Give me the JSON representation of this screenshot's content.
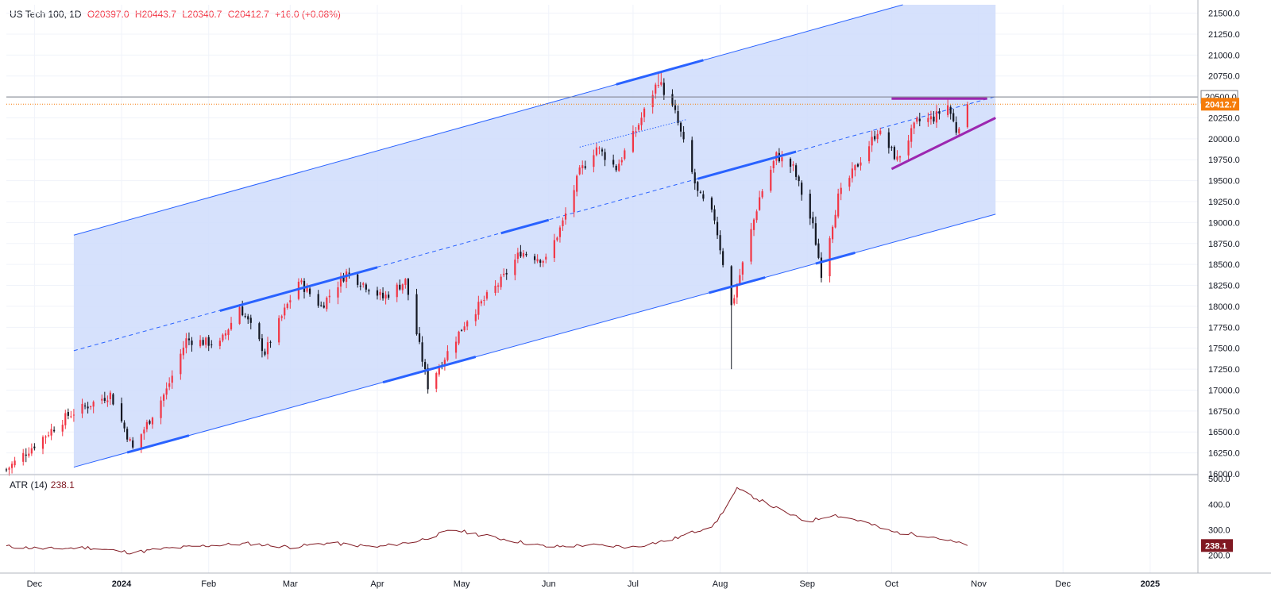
{
  "legend": {
    "symbol": "US Tech 100, 1D",
    "o_label": "O",
    "o": "20397.0",
    "h_label": "H",
    "h": "20443.7",
    "l_label": "L",
    "l": "20340.7",
    "c_label": "C",
    "c": "20412.7",
    "change": "+16.0 (+0.08%)"
  },
  "atr_legend": {
    "name": "ATR (14)",
    "value": "238.1"
  },
  "colors": {
    "up": "#f23645",
    "down": "#131722",
    "channel_fill": "#cfdcfb",
    "channel_line": "#2962ff",
    "touch": "#2962ff",
    "triangle": "#9c27b0",
    "atr_line": "#801922",
    "price_tag": "#f57c0a",
    "atr_tag": "#801922",
    "axis_text": "#131722",
    "grid": "#f0f3fa"
  },
  "chart_data": [
    {
      "type": "candlestick",
      "title": "US Tech 100, 1D",
      "y_ticks": [
        "16000.0",
        "16250.0",
        "16500.0",
        "16750.0",
        "17000.0",
        "17250.0",
        "17500.0",
        "17750.0",
        "18000.0",
        "18250.0",
        "18500.0",
        "18750.0",
        "19000.0",
        "19250.0",
        "19500.0",
        "19750.0",
        "20000.0",
        "20250.0",
        "20500.0",
        "20750.0",
        "21000.0",
        "21250.0",
        "21500.0"
      ],
      "ylim": [
        16000,
        21600
      ],
      "x_ticks": [
        "Dec",
        "2024",
        "Feb",
        "Mar",
        "Apr",
        "May",
        "Jun",
        "Jul",
        "Aug",
        "Sep",
        "Oct",
        "Nov",
        "Dec",
        "2025"
      ],
      "x_tick_dates": [
        "2023-12-01",
        "2024-01-01",
        "2024-02-01",
        "2024-03-01",
        "2024-04-01",
        "2024-05-01",
        "2024-06-01",
        "2024-07-01",
        "2024-08-01",
        "2024-09-01",
        "2024-10-01",
        "2024-11-01",
        "2024-12-01",
        "2025-01-01"
      ],
      "xlim": [
        "2023-11-21",
        "2025-01-18"
      ],
      "last_price": "20412.7",
      "horizontal_level": {
        "value": 20500,
        "label": "20500.0"
      },
      "key_points": [
        {
          "date": "2023-11-21",
          "close": 16050
        },
        {
          "date": "2023-12-13",
          "close": 16700
        },
        {
          "date": "2023-12-28",
          "close": 16950
        },
        {
          "date": "2024-01-05",
          "close": 16300
        },
        {
          "date": "2024-01-17",
          "close": 17000
        },
        {
          "date": "2024-01-24",
          "close": 17600
        },
        {
          "date": "2024-02-05",
          "close": 17550
        },
        {
          "date": "2024-02-12",
          "close": 18000
        },
        {
          "date": "2024-02-21",
          "close": 17450
        },
        {
          "date": "2024-03-04",
          "close": 18300
        },
        {
          "date": "2024-03-12",
          "close": 18000
        },
        {
          "date": "2024-03-21",
          "close": 18400
        },
        {
          "date": "2024-03-28",
          "close": 18250
        },
        {
          "date": "2024-04-03",
          "close": 18100
        },
        {
          "date": "2024-04-11",
          "close": 18300
        },
        {
          "date": "2024-04-19",
          "close": 17050
        },
        {
          "date": "2024-04-26",
          "close": 17450
        },
        {
          "date": "2024-05-03",
          "close": 17850
        },
        {
          "date": "2024-05-15",
          "close": 18300
        },
        {
          "date": "2024-05-22",
          "close": 18650
        },
        {
          "date": "2024-05-31",
          "close": 18550
        },
        {
          "date": "2024-06-06",
          "close": 19000
        },
        {
          "date": "2024-06-12",
          "close": 19600
        },
        {
          "date": "2024-06-18",
          "close": 19900
        },
        {
          "date": "2024-06-25",
          "close": 19650
        },
        {
          "date": "2024-07-02",
          "close": 20100
        },
        {
          "date": "2024-07-10",
          "close": 20700
        },
        {
          "date": "2024-07-16",
          "close": 20300
        },
        {
          "date": "2024-07-24",
          "close": 19350
        },
        {
          "date": "2024-07-30",
          "close": 19050
        },
        {
          "date": "2024-08-05",
          "close": 18000
        },
        {
          "date": "2024-08-09",
          "close": 18500
        },
        {
          "date": "2024-08-15",
          "close": 19300
        },
        {
          "date": "2024-08-21",
          "close": 19800
        },
        {
          "date": "2024-08-27",
          "close": 19650
        },
        {
          "date": "2024-09-03",
          "close": 18950
        },
        {
          "date": "2024-09-06",
          "close": 18400
        },
        {
          "date": "2024-09-12",
          "close": 19300
        },
        {
          "date": "2024-09-19",
          "close": 19700
        },
        {
          "date": "2024-09-26",
          "close": 20100
        },
        {
          "date": "2024-10-03",
          "close": 19750
        },
        {
          "date": "2024-10-10",
          "close": 20200
        },
        {
          "date": "2024-10-16",
          "close": 20250
        },
        {
          "date": "2024-10-21",
          "close": 20400
        },
        {
          "date": "2024-10-24",
          "close": 20100
        },
        {
          "date": "2024-10-28",
          "close": 20412.7
        }
      ],
      "channel": {
        "upper": [
          {
            "date": "2023-12-15",
            "value": 18850
          },
          {
            "date": "2024-10-05",
            "value": 21600
          }
        ],
        "lower": [
          {
            "date": "2023-12-15",
            "value": 16080
          },
          {
            "date": "2024-11-07",
            "value": 19100
          }
        ],
        "mid_start": {
          "date": "2023-12-15",
          "value": 17470
        },
        "right_edge": "2024-11-07"
      },
      "triangle": {
        "top": [
          {
            "date": "2024-10-01",
            "value": 20480
          },
          {
            "date": "2024-11-04",
            "value": 20480
          }
        ],
        "bottom": [
          {
            "date": "2024-10-01",
            "value": 19640
          },
          {
            "date": "2024-11-07",
            "value": 20250
          }
        ]
      }
    },
    {
      "type": "line",
      "title": "ATR (14)",
      "y_ticks": [
        "200.0",
        "300.0",
        "400.0",
        "500.0"
      ],
      "ylim": [
        130,
        510
      ],
      "last_value": "238.1",
      "key_points": [
        {
          "date": "2023-11-21",
          "value": 235
        },
        {
          "date": "2023-12-05",
          "value": 225
        },
        {
          "date": "2023-12-20",
          "value": 230
        },
        {
          "date": "2024-01-05",
          "value": 210
        },
        {
          "date": "2024-01-15",
          "value": 225
        },
        {
          "date": "2024-02-01",
          "value": 238
        },
        {
          "date": "2024-02-15",
          "value": 246
        },
        {
          "date": "2024-03-01",
          "value": 232
        },
        {
          "date": "2024-03-15",
          "value": 248
        },
        {
          "date": "2024-04-01",
          "value": 232
        },
        {
          "date": "2024-04-15",
          "value": 255
        },
        {
          "date": "2024-04-28",
          "value": 300
        },
        {
          "date": "2024-05-15",
          "value": 265
        },
        {
          "date": "2024-06-01",
          "value": 232
        },
        {
          "date": "2024-06-15",
          "value": 240
        },
        {
          "date": "2024-07-01",
          "value": 232
        },
        {
          "date": "2024-07-15",
          "value": 262
        },
        {
          "date": "2024-07-30",
          "value": 320
        },
        {
          "date": "2024-08-07",
          "value": 460
        },
        {
          "date": "2024-08-20",
          "value": 390
        },
        {
          "date": "2024-09-01",
          "value": 330
        },
        {
          "date": "2024-09-10",
          "value": 360
        },
        {
          "date": "2024-09-20",
          "value": 335
        },
        {
          "date": "2024-10-01",
          "value": 292
        },
        {
          "date": "2024-10-15",
          "value": 275
        },
        {
          "date": "2024-10-28",
          "value": 238.1
        }
      ]
    }
  ]
}
